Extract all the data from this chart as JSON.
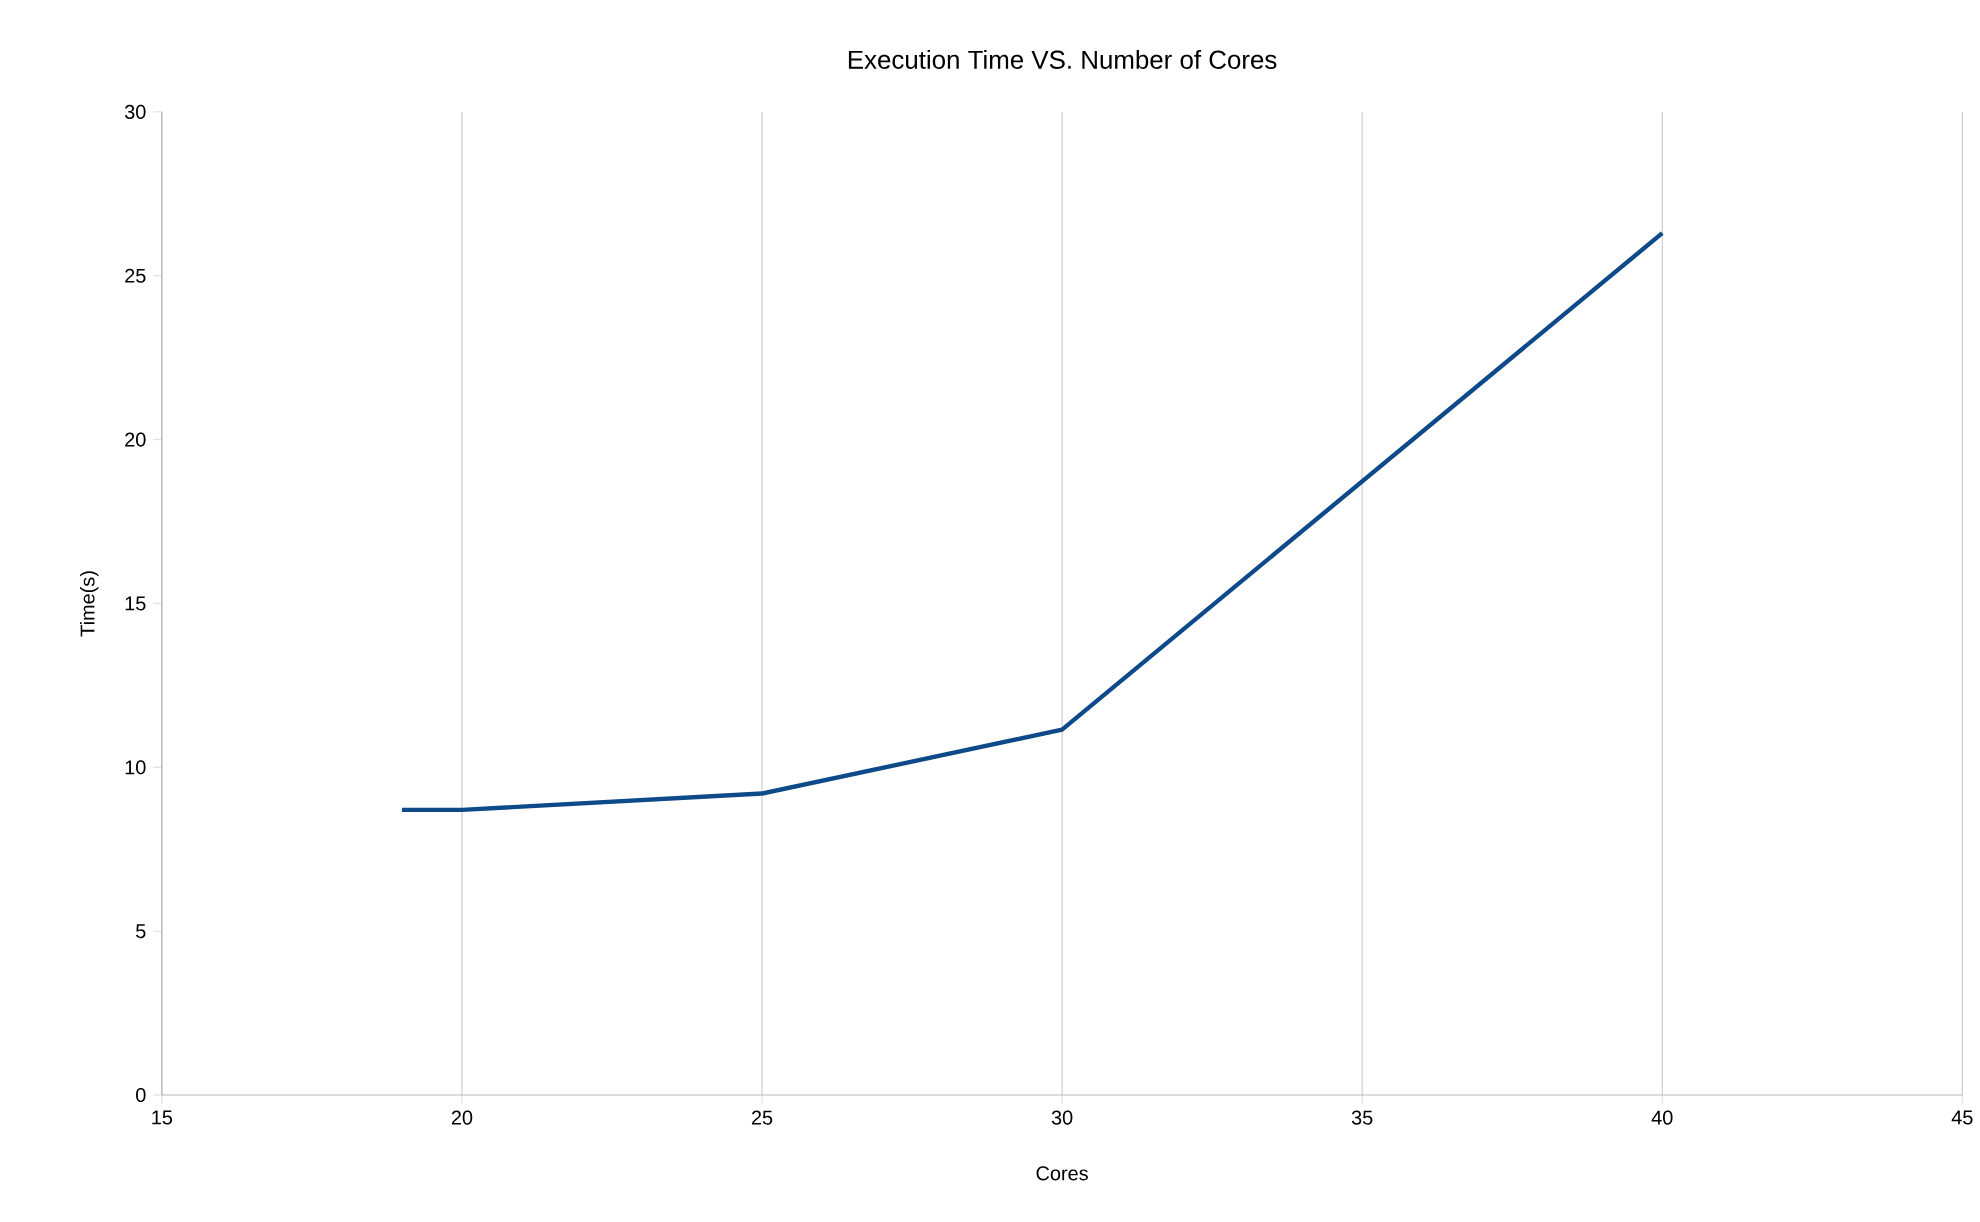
{
  "chart_data": {
    "type": "line",
    "title": "Execution Time VS. Number of Cores",
    "xlabel": "Cores",
    "ylabel": "Time(s)",
    "x": [
      19,
      20,
      25,
      30,
      40
    ],
    "series": [
      {
        "color": "#0e4a8a",
        "values": [
          8.7,
          8.7,
          9.2,
          11.15,
          26.3
        ]
      }
    ],
    "xlim": [
      15,
      45
    ],
    "xticks": [
      15,
      20,
      25,
      30,
      35,
      40,
      45
    ],
    "ylim": [
      0,
      30
    ],
    "yticks": [
      0,
      5,
      10,
      15,
      20,
      25,
      30
    ],
    "grid": "x",
    "marker": "none",
    "line_style": "solid"
  }
}
